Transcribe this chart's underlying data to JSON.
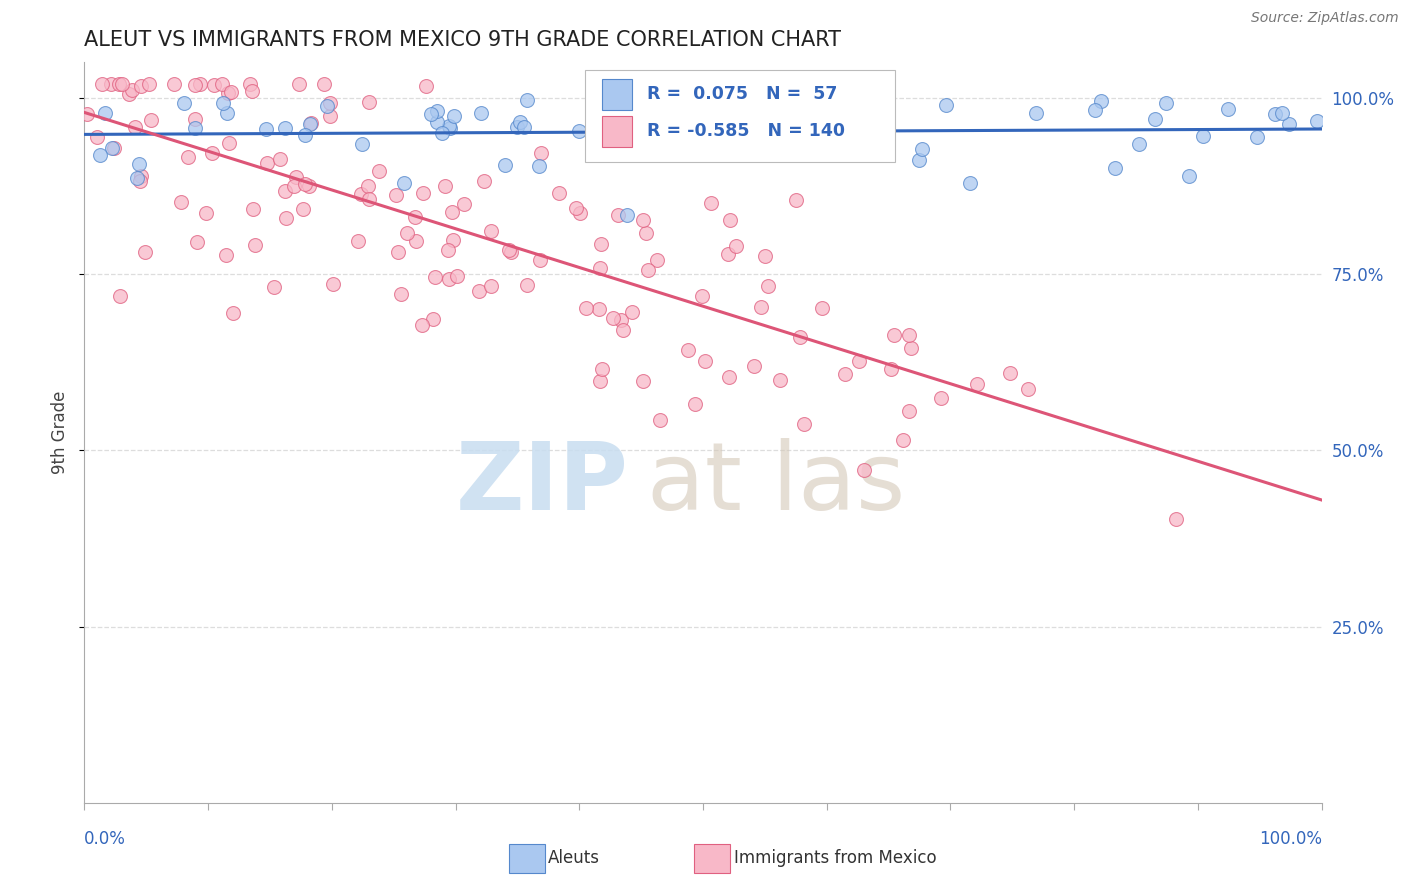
{
  "title": "ALEUT VS IMMIGRANTS FROM MEXICO 9TH GRADE CORRELATION CHART",
  "source": "Source: ZipAtlas.com",
  "ylabel": "9th Grade",
  "ytick_labels": [
    "100.0%",
    "75.0%",
    "50.0%",
    "25.0%"
  ],
  "ytick_values": [
    1.0,
    0.75,
    0.5,
    0.25
  ],
  "legend_blue_label": "Aleuts",
  "legend_pink_label": "Immigrants from Mexico",
  "R_blue": 0.075,
  "N_blue": 57,
  "R_pink": -0.585,
  "N_pink": 140,
  "blue_color": "#aac8f0",
  "blue_edge_color": "#5588cc",
  "blue_line_color": "#3366bb",
  "pink_color": "#f8b8c8",
  "pink_edge_color": "#e06080",
  "pink_line_color": "#dd5577",
  "background_color": "#ffffff",
  "watermark_zip_color": "#c8ddf0",
  "watermark_atlas_color": "#d4c8b8",
  "title_color": "#222222",
  "source_color": "#777777",
  "axis_label_color": "#3366bb",
  "ylabel_color": "#444444",
  "grid_color": "#dddddd",
  "spine_color": "#aaaaaa"
}
